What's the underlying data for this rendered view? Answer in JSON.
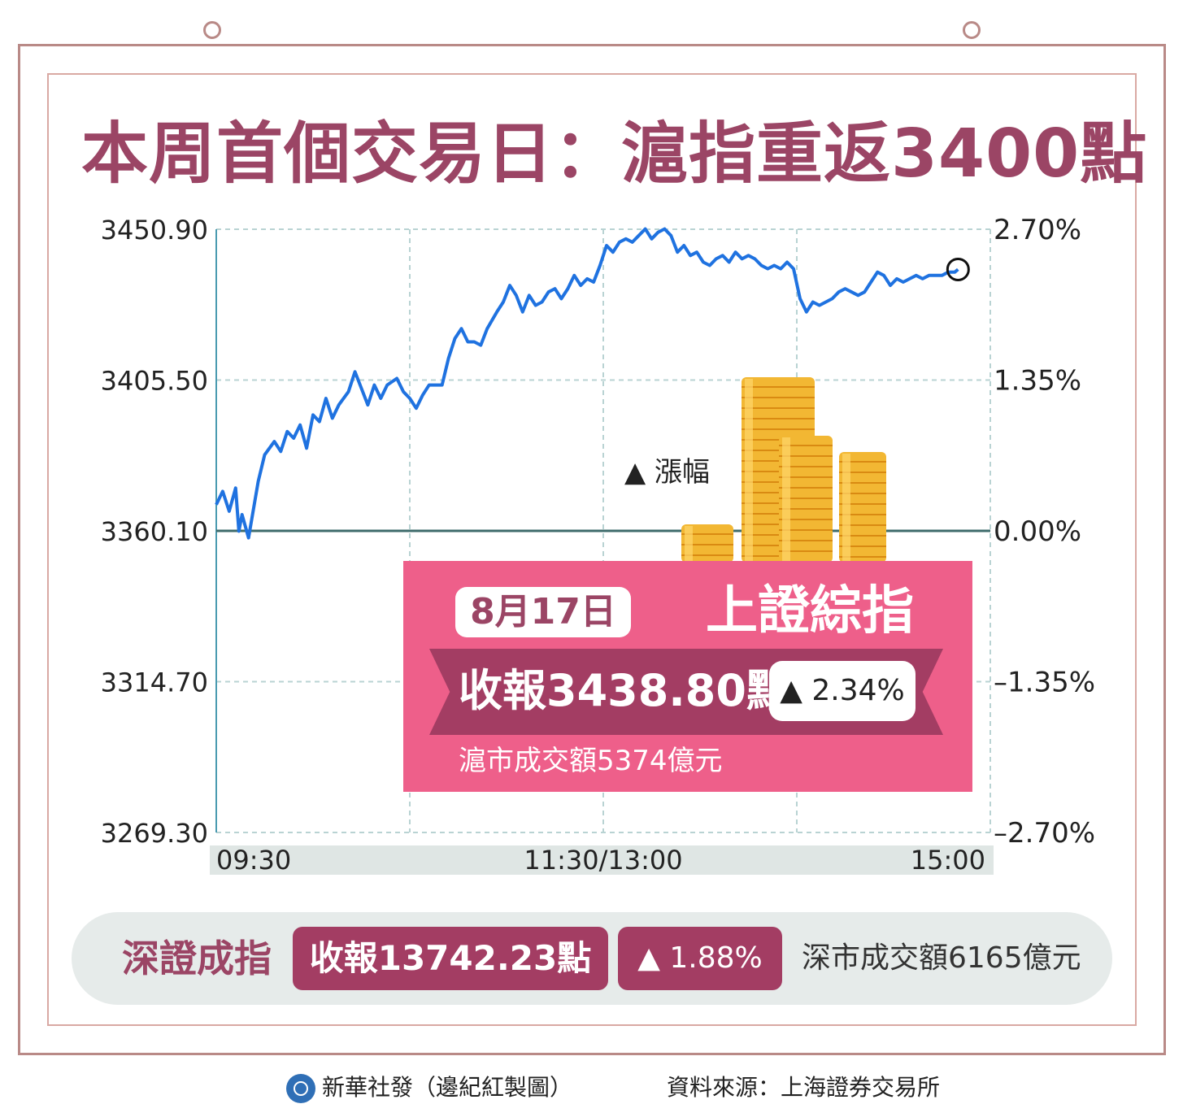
{
  "title": "本周首個交易日：滬指重返3400點",
  "colors": {
    "title": "#9b4565",
    "line": "#1f72e0",
    "info_box": "#ee5f8a",
    "ribbon": "#a33d63",
    "gold": "#f2b733"
  },
  "chart_data": {
    "type": "line",
    "series": [
      {
        "values": [
          [
            0,
            3368
          ],
          [
            2,
            3372
          ],
          [
            4,
            3366
          ],
          [
            6,
            3373
          ],
          [
            7,
            3360
          ],
          [
            8,
            3365
          ],
          [
            10,
            3358
          ],
          [
            13,
            3375
          ],
          [
            15,
            3383
          ],
          [
            18,
            3387
          ],
          [
            20,
            3384
          ],
          [
            22,
            3390
          ],
          [
            24,
            3388
          ],
          [
            26,
            3392
          ],
          [
            28,
            3385
          ],
          [
            30,
            3395
          ],
          [
            32,
            3393
          ],
          [
            34,
            3400
          ],
          [
            36,
            3394
          ],
          [
            38,
            3398
          ],
          [
            41,
            3402
          ],
          [
            43,
            3408
          ],
          [
            45,
            3403
          ],
          [
            47,
            3398
          ],
          [
            49,
            3404
          ],
          [
            51,
            3400
          ],
          [
            53,
            3404
          ],
          [
            56,
            3406
          ],
          [
            58,
            3402
          ],
          [
            60,
            3400
          ],
          [
            62,
            3397
          ],
          [
            64,
            3401
          ],
          [
            66,
            3404
          ],
          [
            70,
            3404
          ],
          [
            72,
            3412
          ],
          [
            74,
            3418
          ],
          [
            76,
            3421
          ],
          [
            78,
            3417
          ],
          [
            80,
            3417
          ],
          [
            82,
            3416
          ],
          [
            84,
            3421
          ],
          [
            87,
            3426
          ],
          [
            89,
            3429
          ],
          [
            91,
            3434
          ],
          [
            93,
            3431
          ],
          [
            95,
            3426
          ],
          [
            97,
            3431
          ],
          [
            99,
            3428
          ],
          [
            101,
            3429
          ],
          [
            103,
            3432
          ],
          [
            105,
            3433
          ],
          [
            107,
            3430
          ],
          [
            109,
            3433
          ],
          [
            111,
            3437
          ],
          [
            113,
            3434
          ],
          [
            115,
            3436
          ],
          [
            117,
            3435
          ],
          [
            119,
            3440
          ],
          [
            121,
            3446
          ],
          [
            123,
            3444
          ],
          [
            125,
            3447
          ],
          [
            127,
            3448
          ],
          [
            129,
            3447
          ],
          [
            131,
            3449
          ],
          [
            133,
            3451
          ],
          [
            135,
            3448
          ],
          [
            137,
            3450
          ],
          [
            139,
            3451
          ],
          [
            141,
            3449
          ],
          [
            143,
            3444
          ],
          [
            145,
            3446
          ],
          [
            147,
            3443
          ],
          [
            149,
            3444
          ],
          [
            151,
            3441
          ],
          [
            153,
            3440
          ],
          [
            155,
            3442
          ],
          [
            157,
            3443
          ],
          [
            159,
            3441
          ],
          [
            161,
            3444
          ],
          [
            163,
            3442
          ],
          [
            165,
            3443
          ],
          [
            167,
            3442
          ],
          [
            169,
            3440
          ],
          [
            171,
            3439
          ],
          [
            173,
            3440
          ],
          [
            175,
            3439
          ],
          [
            177,
            3441
          ],
          [
            179,
            3439
          ],
          [
            181,
            3430
          ],
          [
            183,
            3426
          ],
          [
            185,
            3429
          ],
          [
            187,
            3428
          ],
          [
            189,
            3429
          ],
          [
            191,
            3430
          ],
          [
            193,
            3432
          ],
          [
            195,
            3433
          ],
          [
            197,
            3432
          ],
          [
            199,
            3431
          ],
          [
            201,
            3432
          ],
          [
            203,
            3435
          ],
          [
            205,
            3438
          ],
          [
            207,
            3437
          ],
          [
            209,
            3434
          ],
          [
            211,
            3436
          ],
          [
            213,
            3435
          ],
          [
            215,
            3436
          ],
          [
            217,
            3437
          ],
          [
            219,
            3436
          ],
          [
            221,
            3437
          ],
          [
            223,
            3437
          ],
          [
            225,
            3437
          ],
          [
            227,
            3438
          ],
          [
            229,
            3438
          ],
          [
            230,
            3438.8
          ]
        ]
      }
    ],
    "xlim": [
      0,
      240
    ],
    "x_ticks": [
      {
        "x": 0,
        "label": "09:30"
      },
      {
        "x": 120,
        "label": "11:30/13:00"
      },
      {
        "x": 240,
        "label": "15:00"
      }
    ],
    "x_gridlines": [
      0,
      60,
      120,
      180,
      240
    ],
    "ylim": [
      3269.3,
      3450.9
    ],
    "y_ticks_left": [
      "3450.90",
      "3405.50",
      "3360.10",
      "3314.70",
      "3269.30"
    ],
    "y_ticks_right": [
      "2.70%",
      "1.35%",
      "0.00%",
      "–1.35%",
      "–2.70%"
    ],
    "baseline": 3360.1,
    "annotation": "▲ 漲幅",
    "last_value": 3438.8,
    "grid": true
  },
  "sse_box": {
    "date": "8月17日",
    "index": "上證綜指",
    "close": "收報3438.80點",
    "change": "▲ 2.34%",
    "volume": "滬市成交額5374億元"
  },
  "szse": {
    "label": "深證成指",
    "close": "收報13742.23點",
    "change": "▲ 1.88%",
    "volume": "深市成交額6165億元"
  },
  "footer": {
    "credit": "新華社發（邊紀紅製圖）",
    "source": "資料來源：上海證券交易所"
  }
}
